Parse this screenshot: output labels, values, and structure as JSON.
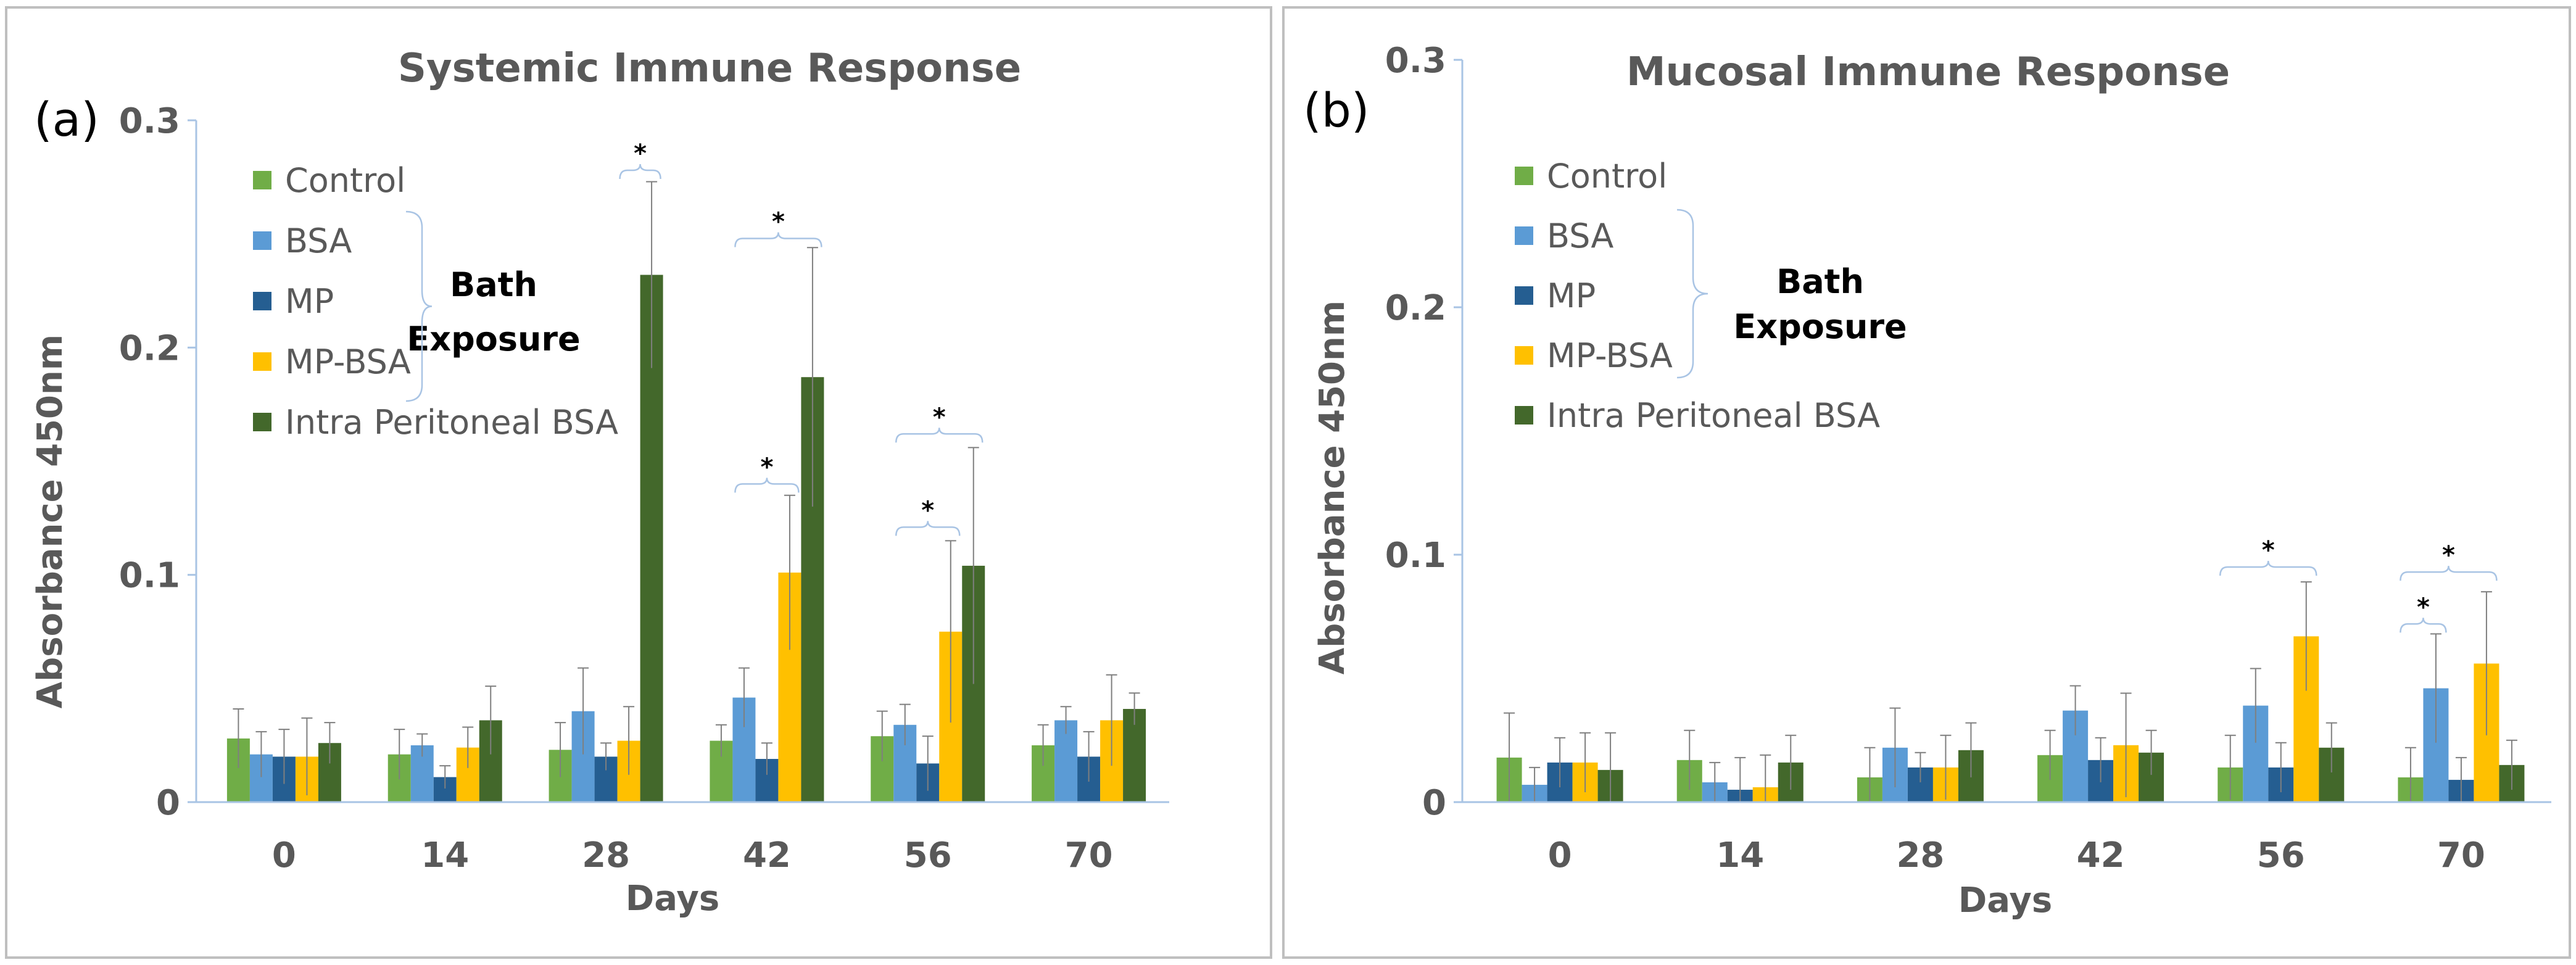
{
  "colors": {
    "Control": "#70ad47",
    "BSA": "#5b9bd5",
    "MP": "#255e91",
    "MP-BSA": "#ffc000",
    "Intra Peritoneal BSA": "#43682b",
    "axis": "#a9c4e4",
    "text": "#595959",
    "border": "#bfbfbf"
  },
  "chart_data": [
    {
      "type": "bar",
      "panel_label": "(a)",
      "title": "Systemic Immune Response",
      "xlabel": "Days",
      "ylabel": "Absorbance  450nm",
      "ylim": [
        0,
        0.3
      ],
      "yticks": [
        0,
        0.1,
        0.2,
        0.3
      ],
      "ytick_labels": [
        "0",
        "0.1",
        "0.2",
        "0.3"
      ],
      "categories": [
        "0",
        "14",
        "28",
        "42",
        "56",
        "70"
      ],
      "series": [
        {
          "name": "Control",
          "values": [
            0.028,
            0.021,
            0.023,
            0.027,
            0.029,
            0.025
          ],
          "errors": [
            0.013,
            0.011,
            0.012,
            0.007,
            0.011,
            0.009
          ]
        },
        {
          "name": "BSA",
          "values": [
            0.021,
            0.025,
            0.04,
            0.046,
            0.034,
            0.036
          ],
          "errors": [
            0.01,
            0.005,
            0.019,
            0.013,
            0.009,
            0.006
          ]
        },
        {
          "name": "MP",
          "values": [
            0.02,
            0.011,
            0.02,
            0.019,
            0.017,
            0.02
          ],
          "errors": [
            0.012,
            0.005,
            0.006,
            0.007,
            0.012,
            0.011
          ]
        },
        {
          "name": "MP-BSA",
          "values": [
            0.02,
            0.024,
            0.027,
            0.101,
            0.075,
            0.036
          ],
          "errors": [
            0.017,
            0.009,
            0.015,
            0.034,
            0.04,
            0.02
          ]
        },
        {
          "name": "Intra Peritoneal BSA",
          "values": [
            0.026,
            0.036,
            0.232,
            0.187,
            0.104,
            0.041
          ],
          "errors": [
            0.009,
            0.015,
            0.041,
            0.057,
            0.052,
            0.007
          ]
        }
      ],
      "legend": [
        "Control",
        "BSA",
        "MP",
        "MP-BSA",
        "Intra Peritoneal BSA"
      ],
      "legend_group_label": [
        "Bath",
        "Exposure"
      ],
      "significance": [
        {
          "category": "28",
          "from": "MP-BSA",
          "to": "Intra Peritoneal BSA",
          "level": 0.278,
          "label": "*"
        },
        {
          "category": "42",
          "from": "BSA",
          "to": "Intra Peritoneal BSA",
          "level": 0.248,
          "label": "*"
        },
        {
          "category": "42",
          "from": "BSA",
          "to": "MP-BSA",
          "level": 0.14,
          "label": "*"
        },
        {
          "category": "56",
          "from": "BSA",
          "to": "Intra Peritoneal BSA",
          "level": 0.162,
          "label": "*"
        },
        {
          "category": "56",
          "from": "BSA",
          "to": "MP-BSA",
          "level": 0.121,
          "label": "*"
        }
      ]
    },
    {
      "type": "bar",
      "panel_label": "(b)",
      "title": "Mucosal Immune Response",
      "xlabel": "Days",
      "ylabel": "Absorbance  450nm",
      "ylim": [
        0,
        0.3
      ],
      "yticks": [
        0,
        0.1,
        0.2,
        0.3
      ],
      "ytick_labels": [
        "0",
        "0.1",
        "0.2",
        "0.3"
      ],
      "categories": [
        "0",
        "14",
        "28",
        "42",
        "56",
        "70"
      ],
      "series": [
        {
          "name": "Control",
          "values": [
            0.018,
            0.017,
            0.01,
            0.019,
            0.014,
            0.01
          ],
          "errors": [
            0.018,
            0.012,
            0.012,
            0.01,
            0.013,
            0.012
          ]
        },
        {
          "name": "BSA",
          "values": [
            0.007,
            0.008,
            0.022,
            0.037,
            0.039,
            0.046
          ],
          "errors": [
            0.007,
            0.008,
            0.016,
            0.01,
            0.015,
            0.022
          ]
        },
        {
          "name": "MP",
          "values": [
            0.016,
            0.005,
            0.014,
            0.017,
            0.014,
            0.009
          ],
          "errors": [
            0.01,
            0.013,
            0.006,
            0.009,
            0.01,
            0.009
          ]
        },
        {
          "name": "MP-BSA",
          "values": [
            0.016,
            0.006,
            0.014,
            0.023,
            0.067,
            0.056
          ],
          "errors": [
            0.012,
            0.013,
            0.013,
            0.021,
            0.022,
            0.029
          ]
        },
        {
          "name": "Intra Peritoneal BSA",
          "values": [
            0.013,
            0.016,
            0.021,
            0.02,
            0.022,
            0.015
          ],
          "errors": [
            0.015,
            0.011,
            0.011,
            0.009,
            0.01,
            0.01
          ]
        }
      ],
      "legend": [
        "Control",
        "BSA",
        "MP",
        "MP-BSA",
        "Intra Peritoneal BSA"
      ],
      "legend_group_label": [
        "Bath",
        "Exposure"
      ],
      "significance": [
        {
          "category": "56",
          "from": "Control",
          "to": "MP-BSA",
          "level": 0.095,
          "label": "*"
        },
        {
          "category": "70",
          "from": "Control",
          "to": "MP-BSA",
          "level": 0.093,
          "label": "*"
        },
        {
          "category": "70",
          "from": "Control",
          "to": "BSA",
          "level": 0.072,
          "label": "*"
        }
      ]
    }
  ]
}
